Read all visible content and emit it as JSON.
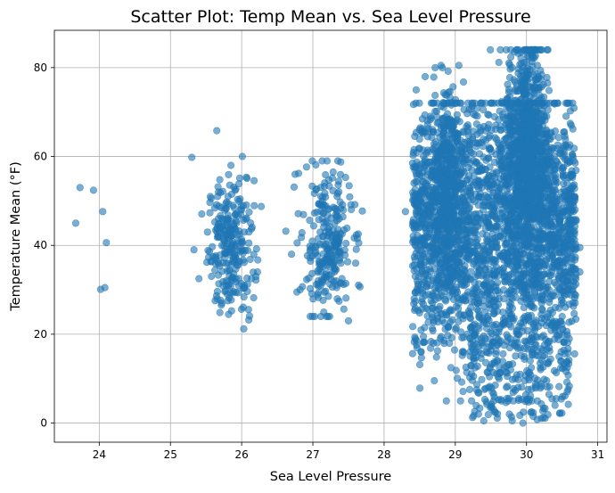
{
  "chart_data": {
    "type": "scatter",
    "title": "Scatter Plot: Temp Mean vs. Sea Level Pressure",
    "xlabel": "Sea Level Pressure",
    "ylabel": "Temperature Mean (°F)",
    "xlim": [
      23.37,
      31.13
    ],
    "ylim": [
      -4.3,
      88.4
    ],
    "xticks": [
      "24",
      "25",
      "26",
      "27",
      "28",
      "29",
      "30",
      "31"
    ],
    "yticks": [
      "0",
      "20",
      "40",
      "60",
      "80"
    ],
    "grid": true,
    "color": "#1f77b4",
    "alpha": 0.6,
    "point_samples": [
      [
        23.67,
        45.0
      ],
      [
        23.73,
        53.0
      ],
      [
        23.92,
        52.4
      ],
      [
        24.05,
        47.6
      ],
      [
        24.1,
        40.6
      ],
      [
        24.02,
        30.1
      ],
      [
        24.08,
        30.5
      ],
      [
        25.3,
        59.8
      ],
      [
        25.65,
        65.8
      ],
      [
        25.52,
        43.0
      ],
      [
        25.72,
        27.0
      ],
      [
        25.85,
        58.0
      ],
      [
        26.03,
        21.2
      ],
      [
        26.1,
        23.2
      ],
      [
        25.4,
        32.5
      ],
      [
        26.2,
        33.0
      ],
      [
        26.62,
        43.2
      ],
      [
        26.7,
        38.0
      ],
      [
        26.75,
        56.0
      ],
      [
        26.8,
        56.2
      ],
      [
        27.2,
        59.0
      ],
      [
        27.35,
        59.0
      ],
      [
        27.5,
        23.0
      ],
      [
        27.6,
        36.0
      ],
      [
        28.3,
        47.6
      ],
      [
        28.4,
        58.5
      ],
      [
        28.45,
        75.0
      ],
      [
        28.8,
        80.5
      ],
      [
        28.85,
        22.5
      ],
      [
        28.95,
        19.2
      ],
      [
        29.05,
        80.5
      ],
      [
        29.22,
        13.0
      ],
      [
        29.3,
        7.5
      ],
      [
        29.4,
        0.5
      ],
      [
        29.55,
        2.5
      ],
      [
        29.75,
        71.5
      ],
      [
        29.8,
        0.5
      ],
      [
        29.95,
        0.0
      ],
      [
        30.0,
        84.0
      ],
      [
        30.07,
        2.5
      ],
      [
        30.15,
        0.8
      ],
      [
        30.4,
        4.0
      ],
      [
        30.6,
        8.3
      ],
      [
        30.6,
        52.0
      ],
      [
        30.75,
        39.5
      ],
      [
        30.75,
        34.0
      ],
      [
        30.3,
        70.5
      ],
      [
        30.5,
        24.0
      ]
    ]
  }
}
